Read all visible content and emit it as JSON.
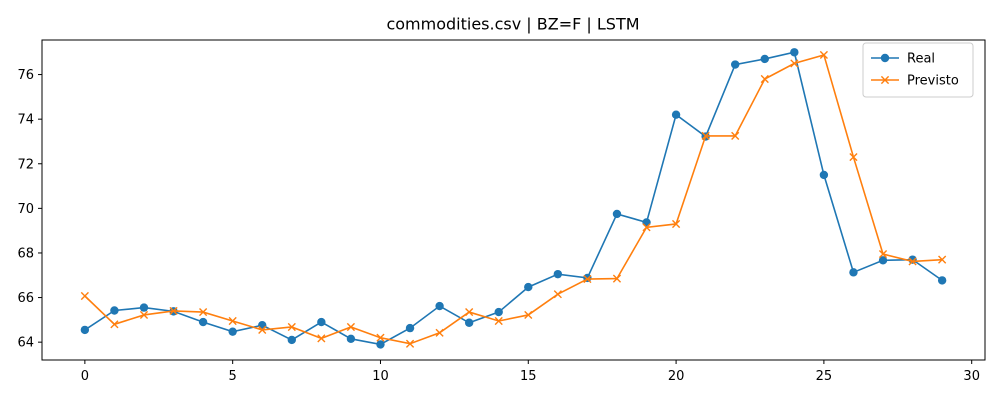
{
  "chart_data": {
    "type": "line",
    "title": "commodities.csv | BZ=F | LSTM",
    "xlabel": "",
    "ylabel": "",
    "xlim": [
      -1.45,
      30.45
    ],
    "ylim": [
      63.2,
      77.55
    ],
    "x_ticks": [
      0,
      5,
      10,
      15,
      20,
      25,
      30
    ],
    "y_ticks": [
      64,
      66,
      68,
      70,
      72,
      74,
      76
    ],
    "grid": false,
    "legend_position": "top-right",
    "x": [
      0,
      1,
      2,
      3,
      4,
      5,
      6,
      7,
      8,
      9,
      10,
      11,
      12,
      13,
      14,
      15,
      16,
      17,
      18,
      19,
      20,
      21,
      22,
      23,
      24,
      25,
      26,
      27,
      28,
      29
    ],
    "series": [
      {
        "name": "Real",
        "color": "#1f77b4",
        "marker": "circle",
        "values": [
          64.55,
          65.42,
          65.55,
          65.38,
          64.9,
          64.47,
          64.76,
          64.1,
          64.9,
          64.15,
          63.9,
          64.63,
          65.62,
          64.87,
          65.35,
          66.47,
          67.05,
          66.88,
          69.75,
          69.37,
          74.2,
          73.22,
          76.45,
          76.7,
          77.0,
          71.5,
          67.13,
          67.67,
          67.7,
          66.77
        ]
      },
      {
        "name": "Previsto",
        "color": "#ff7f0e",
        "marker": "x",
        "values": [
          66.07,
          64.8,
          65.22,
          65.4,
          65.35,
          64.95,
          64.55,
          64.68,
          64.17,
          64.68,
          64.2,
          63.93,
          64.42,
          65.35,
          64.95,
          65.22,
          66.15,
          66.83,
          66.85,
          69.15,
          69.3,
          73.25,
          73.25,
          75.8,
          76.5,
          76.88,
          72.3,
          67.95,
          67.62,
          67.7
        ]
      }
    ]
  }
}
